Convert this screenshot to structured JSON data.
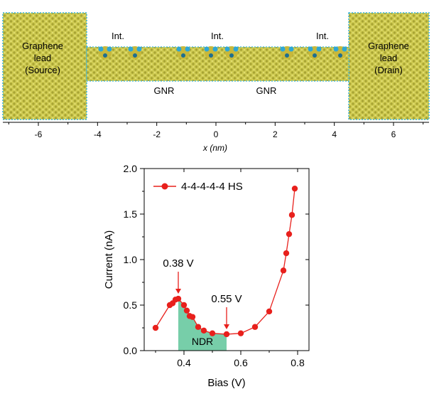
{
  "structure_panel": {
    "left_lead_label": [
      "Graphene",
      "lead",
      "(Source)"
    ],
    "right_lead_label": [
      "Graphene",
      "lead",
      "(Drain)"
    ],
    "intermolecular_labels": [
      "Int.",
      "Int.",
      "Int."
    ],
    "ribbon_labels": [
      "GNR",
      "GNR"
    ],
    "x_axis": {
      "label": "x (nm)",
      "range": [
        -7.2,
        7.2
      ],
      "ticks": [
        -6,
        -4,
        -2,
        0,
        2,
        4,
        6
      ],
      "tick_labels": [
        "-6",
        "-4",
        "-2",
        "0",
        "2",
        "4",
        "6"
      ]
    },
    "colors": {
      "lead": "#c8c44a",
      "lead_dark": "#9c9a2a",
      "edge": "#3ab3d6",
      "ribbon": "#d8d25c"
    }
  },
  "chart_data": {
    "type": "line",
    "series": [
      {
        "name": "4-4-4-4-4 HS",
        "color": "#e8201c",
        "points": [
          [
            0.3,
            0.25
          ],
          [
            0.35,
            0.5
          ],
          [
            0.36,
            0.52
          ],
          [
            0.37,
            0.56
          ],
          [
            0.38,
            0.57
          ],
          [
            0.4,
            0.5
          ],
          [
            0.41,
            0.44
          ],
          [
            0.42,
            0.38
          ],
          [
            0.43,
            0.37
          ],
          [
            0.45,
            0.26
          ],
          [
            0.47,
            0.22
          ],
          [
            0.5,
            0.19
          ],
          [
            0.55,
            0.18
          ],
          [
            0.6,
            0.19
          ],
          [
            0.65,
            0.26
          ],
          [
            0.7,
            0.43
          ],
          [
            0.75,
            0.88
          ],
          [
            0.76,
            1.07
          ],
          [
            0.77,
            1.28
          ],
          [
            0.78,
            1.49
          ],
          [
            0.79,
            1.78
          ]
        ]
      }
    ],
    "xlabel": "Bias (V)",
    "ylabel": "Current (nA)",
    "xlim": [
      0.26,
      0.84
    ],
    "ylim": [
      0.0,
      2.0
    ],
    "xticks": [
      0.4,
      0.6,
      0.8
    ],
    "xtick_labels": [
      "0.4",
      "0.6",
      "0.8"
    ],
    "yticks": [
      0.0,
      0.5,
      1.0,
      1.5,
      2.0
    ],
    "ytick_labels": [
      "0.0",
      "0.5",
      "1.0",
      "1.5",
      "2.0"
    ],
    "legend": "top-left",
    "annotations": [
      {
        "text": "0.38 V",
        "x": 0.38,
        "y": 0.57
      },
      {
        "text": "0.55 V",
        "x": 0.55,
        "y": 0.18
      }
    ],
    "shaded_region": {
      "label": "NDR",
      "x_from": 0.38,
      "x_to": 0.55,
      "color": "#5fc59a"
    },
    "grid": false
  }
}
